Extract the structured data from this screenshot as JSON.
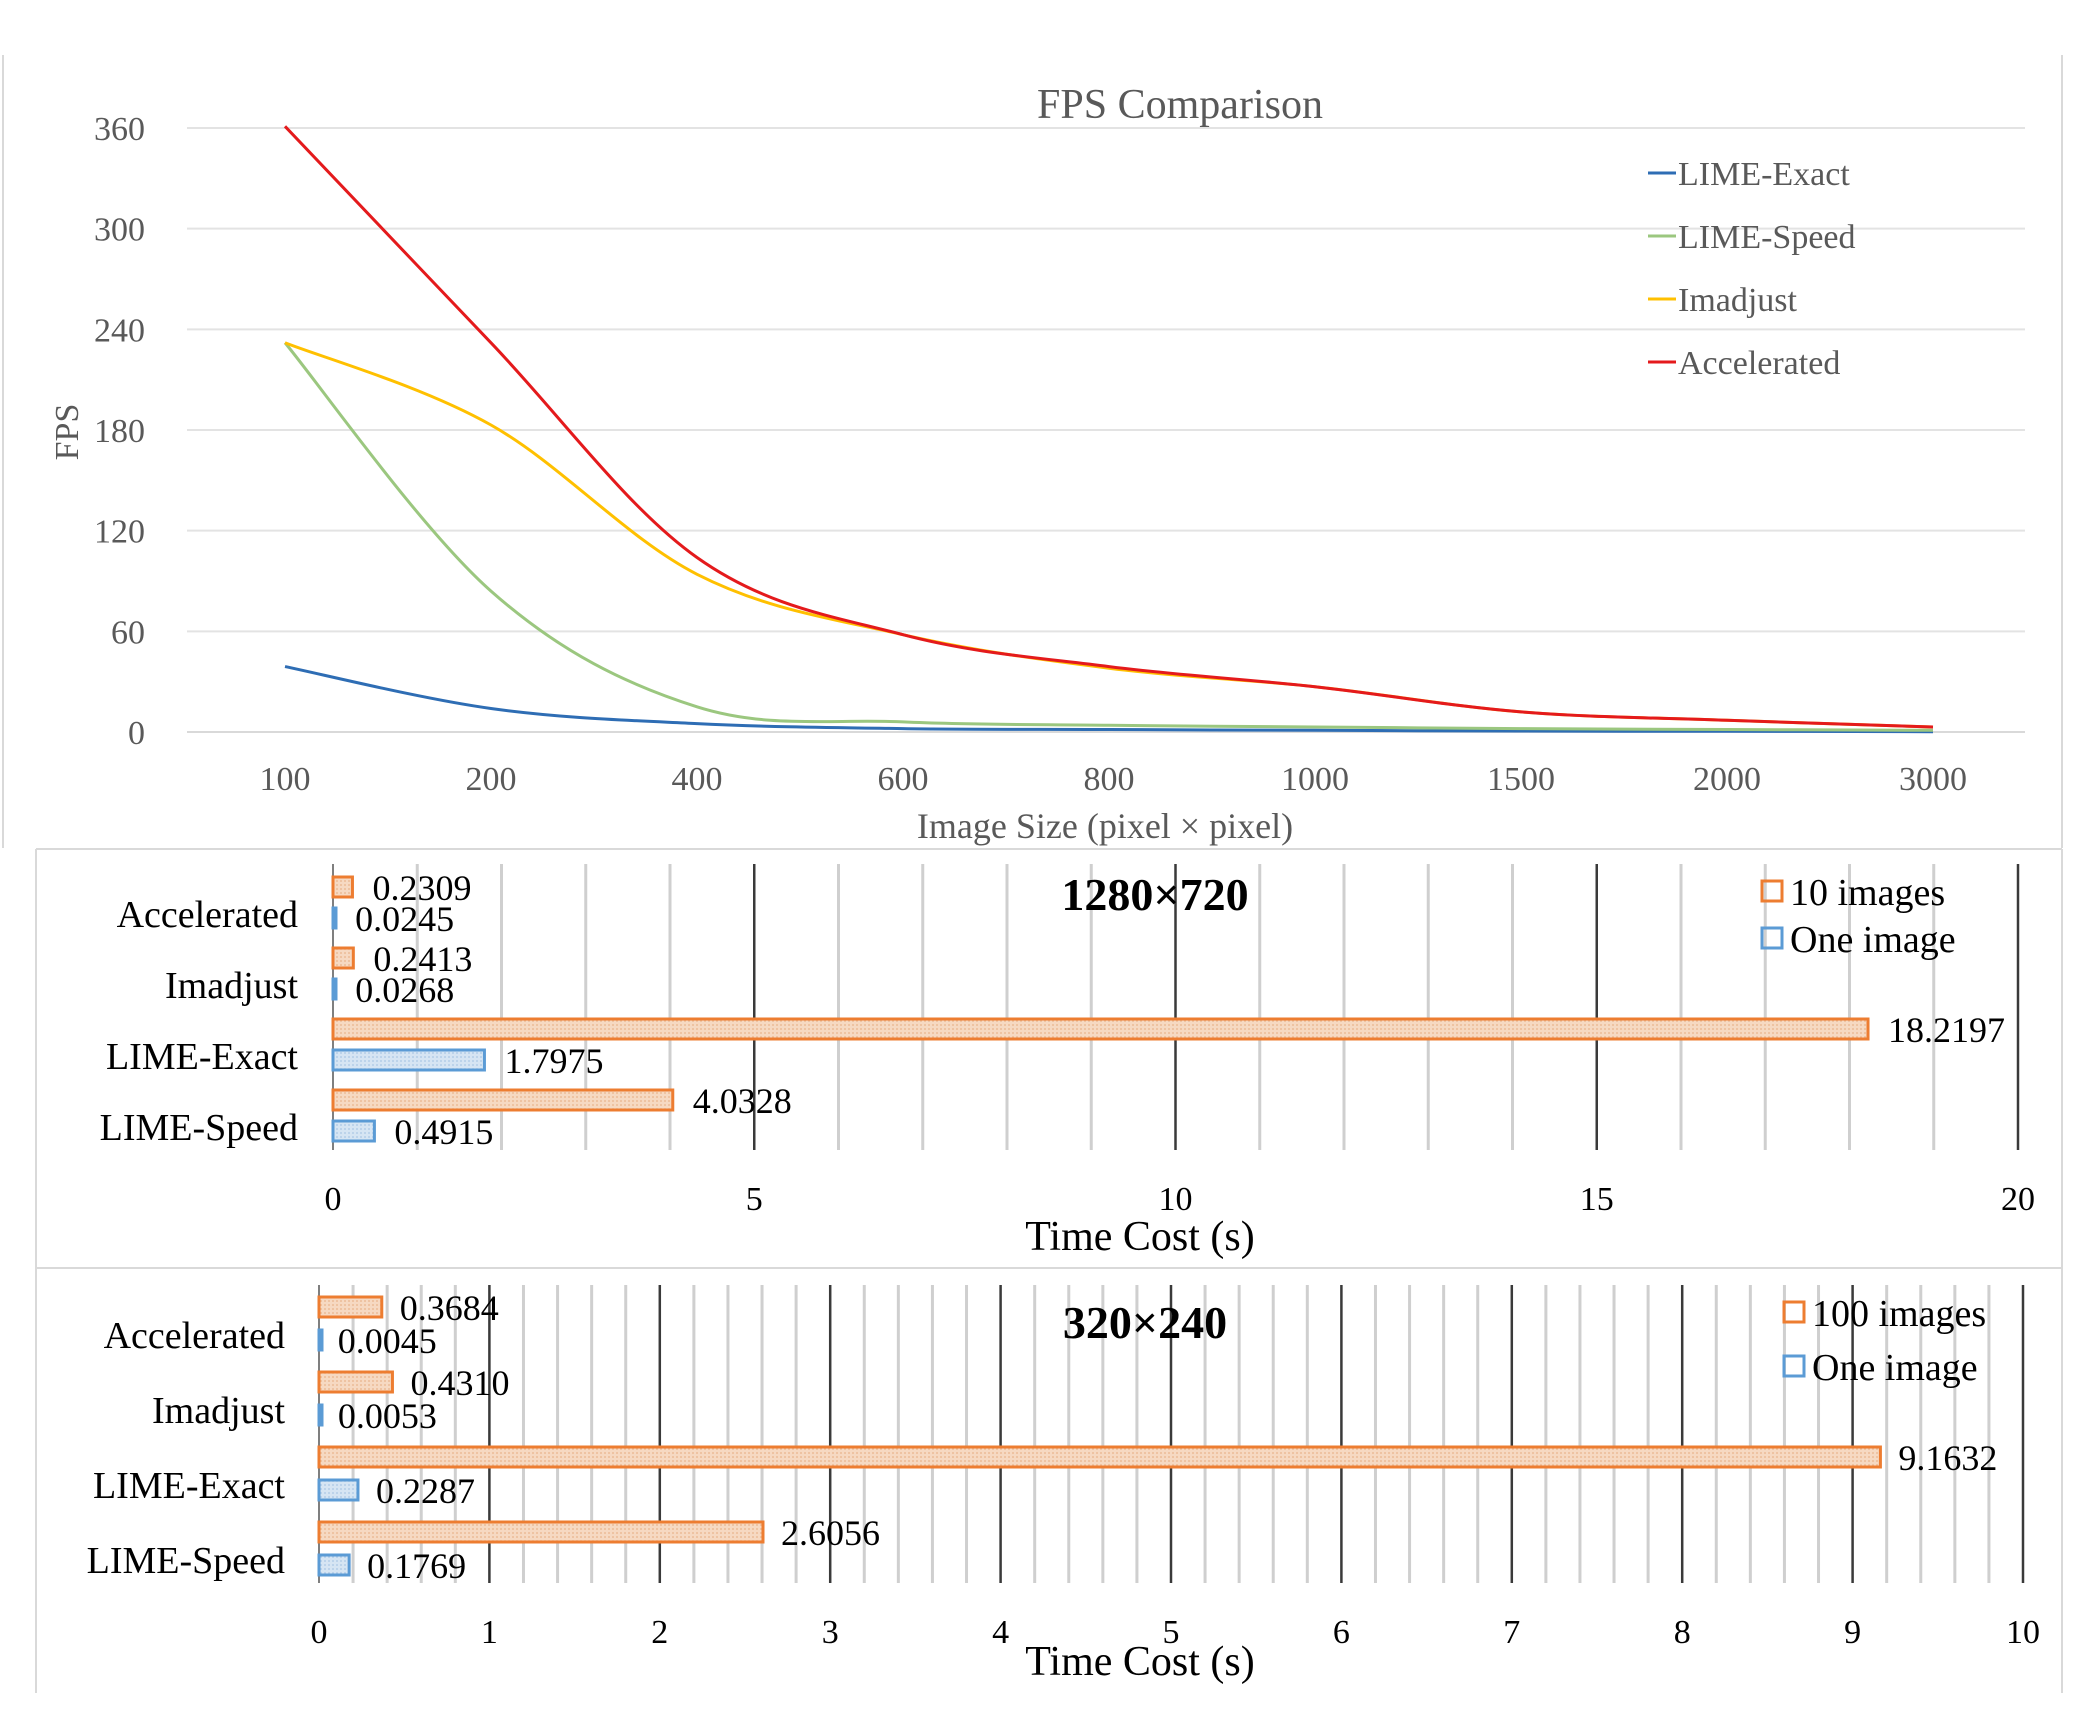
{
  "chart_data": [
    {
      "type": "line",
      "title": "FPS Comparison",
      "xlabel": "Image Size (pixel × pixel)",
      "ylabel": "FPS",
      "categories": [
        "100",
        "200",
        "400",
        "600",
        "800",
        "1000",
        "1500",
        "2000",
        "3000"
      ],
      "yticks": [
        "0",
        "60",
        "120",
        "180",
        "240",
        "300",
        "360"
      ],
      "ylim": [
        0,
        360
      ],
      "grid": true,
      "legend_position": "top-right",
      "series": [
        {
          "name": "LIME-Exact",
          "color": "#2E6DB4",
          "values": [
            39,
            14,
            5,
            2,
            1.5,
            1,
            0.6,
            0.4,
            0.2
          ]
        },
        {
          "name": "LIME-Speed",
          "color": "#9BC77F",
          "values": [
            232,
            84,
            15,
            6,
            4,
            3,
            2,
            1.5,
            1
          ]
        },
        {
          "name": "Imadjust",
          "color": "#FFC000",
          "values": [
            232,
            183,
            94,
            58,
            38,
            27,
            12,
            7,
            3
          ]
        },
        {
          "name": "Accelerated",
          "color": "#E41A1C",
          "values": [
            361,
            232,
            104,
            58,
            39,
            27,
            12,
            7,
            3
          ]
        }
      ]
    },
    {
      "type": "bar",
      "orientation": "horizontal",
      "title": "1280×720",
      "xlabel": "Time Cost (s)",
      "xlim": [
        0,
        20
      ],
      "xticks": [
        "0",
        "5",
        "10",
        "15",
        "20"
      ],
      "categories": [
        "Accelerated",
        "Imadjust",
        "LIME-Exact",
        "LIME-Speed"
      ],
      "legend_position": "top-right",
      "series": [
        {
          "name": "10 images",
          "color": "#ED7D31",
          "values": [
            0.2309,
            0.2413,
            18.2197,
            4.0328
          ],
          "labels": [
            "0.2309",
            "0.2413",
            "18.2197",
            "4.0328"
          ]
        },
        {
          "name": "One image",
          "color": "#5B9BD5",
          "values": [
            0.0245,
            0.0268,
            1.7975,
            0.4915
          ],
          "labels": [
            "0.0245",
            "0.0268",
            "1.7975",
            "0.4915"
          ]
        }
      ]
    },
    {
      "type": "bar",
      "orientation": "horizontal",
      "title": "320×240",
      "xlabel": "Time Cost (s)",
      "xlim": [
        0,
        10
      ],
      "xticks": [
        "0",
        "1",
        "2",
        "3",
        "4",
        "5",
        "6",
        "7",
        "8",
        "9",
        "10"
      ],
      "categories": [
        "Accelerated",
        "Imadjust",
        "LIME-Exact",
        "LIME-Speed"
      ],
      "legend_position": "top-right",
      "series": [
        {
          "name": "100 images",
          "color": "#ED7D31",
          "values": [
            0.3684,
            0.431,
            9.1632,
            2.6056
          ],
          "labels": [
            "0.3684",
            "0.4310",
            "9.1632",
            "2.6056"
          ]
        },
        {
          "name": "One image",
          "color": "#5B9BD5",
          "values": [
            0.0045,
            0.0053,
            0.2287,
            0.1769
          ],
          "labels": [
            "0.0045",
            "0.0053",
            "0.2287",
            "0.1769"
          ]
        }
      ]
    }
  ]
}
